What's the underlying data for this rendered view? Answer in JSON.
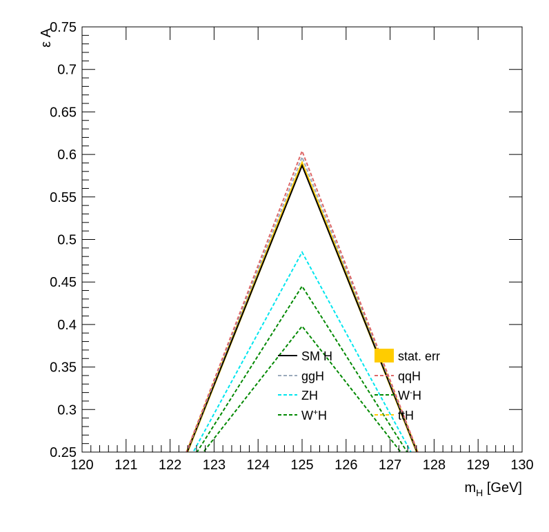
{
  "chart_data": {
    "type": "line",
    "title": "",
    "xlabel": {
      "main": "m",
      "sub": "H",
      "rest": " [GeV]"
    },
    "ylabel": "ε A",
    "xlim": [
      120,
      130
    ],
    "ylim": [
      0.25,
      0.75
    ],
    "xticks": [
      "120",
      "121",
      "122",
      "123",
      "124",
      "125",
      "126",
      "127",
      "128",
      "129",
      "130"
    ],
    "yticks": [
      "0.25",
      "0.3",
      "0.35",
      "0.4",
      "0.45",
      "0.5",
      "0.55",
      "0.6",
      "0.65",
      "0.7",
      "0.75"
    ],
    "grid": false,
    "legend_position": "bottom-right",
    "series": [
      {
        "name": "stat. err",
        "color": "#ffcc00",
        "style": "band",
        "x": [
          122,
          125,
          128
        ],
        "y": [
          0.2,
          0.589,
          0.2
        ],
        "width": 0.004
      },
      {
        "name": "SM H",
        "color": "#000000",
        "style": "solid",
        "x": [
          122,
          125,
          128
        ],
        "y": [
          0.2,
          0.587,
          0.2
        ]
      },
      {
        "name": "ggH",
        "color": "#99aabb",
        "style": "dashed",
        "x": [
          122,
          125,
          128
        ],
        "y": [
          0.2,
          0.597,
          0.2
        ]
      },
      {
        "name": "qqH",
        "color": "#dd6666",
        "style": "dashed",
        "x": [
          122,
          125,
          128
        ],
        "y": [
          0.2,
          0.604,
          0.2
        ]
      },
      {
        "name": "ZH",
        "color": "#00e5ee",
        "style": "dashed",
        "x": [
          122,
          125,
          128
        ],
        "y": [
          0.2,
          0.485,
          0.2
        ]
      },
      {
        "name": "W⁻H",
        "color": "#008800",
        "style": "dashed",
        "x": [
          122,
          125,
          128
        ],
        "y": [
          0.2,
          0.445,
          0.2
        ]
      },
      {
        "name": "W⁺H",
        "color": "#008800",
        "style": "dashed",
        "x": [
          122,
          125,
          128
        ],
        "y": [
          0.2,
          0.398,
          0.2
        ]
      },
      {
        "name": "ttH",
        "color": "#ffcc00",
        "style": "dashed",
        "x": [],
        "y": []
      }
    ],
    "legend": [
      {
        "label": "SM H",
        "sup": "",
        "rest": "",
        "kind": "line",
        "color": "#000000",
        "dash": false
      },
      {
        "label": "stat. err",
        "sup": "",
        "rest": "",
        "kind": "box",
        "color": "#ffcc00",
        "dash": false
      },
      {
        "label": "ggH",
        "sup": "",
        "rest": "",
        "kind": "line",
        "color": "#99aabb",
        "dash": true
      },
      {
        "label": "qqH",
        "sup": "",
        "rest": "",
        "kind": "line",
        "color": "#dd6666",
        "dash": true
      },
      {
        "label": "ZH",
        "sup": "",
        "rest": "",
        "kind": "line",
        "color": "#00e5ee",
        "dash": true
      },
      {
        "label": "W",
        "sup": "-",
        "rest": "H",
        "kind": "line",
        "color": "#008800",
        "dash": true
      },
      {
        "label": "W",
        "sup": "+",
        "rest": "H",
        "kind": "line",
        "color": "#008800",
        "dash": true
      },
      {
        "label": "ttH",
        "sup": "",
        "rest": "",
        "kind": "line",
        "color": "#ffcc00",
        "dash": true
      }
    ]
  }
}
